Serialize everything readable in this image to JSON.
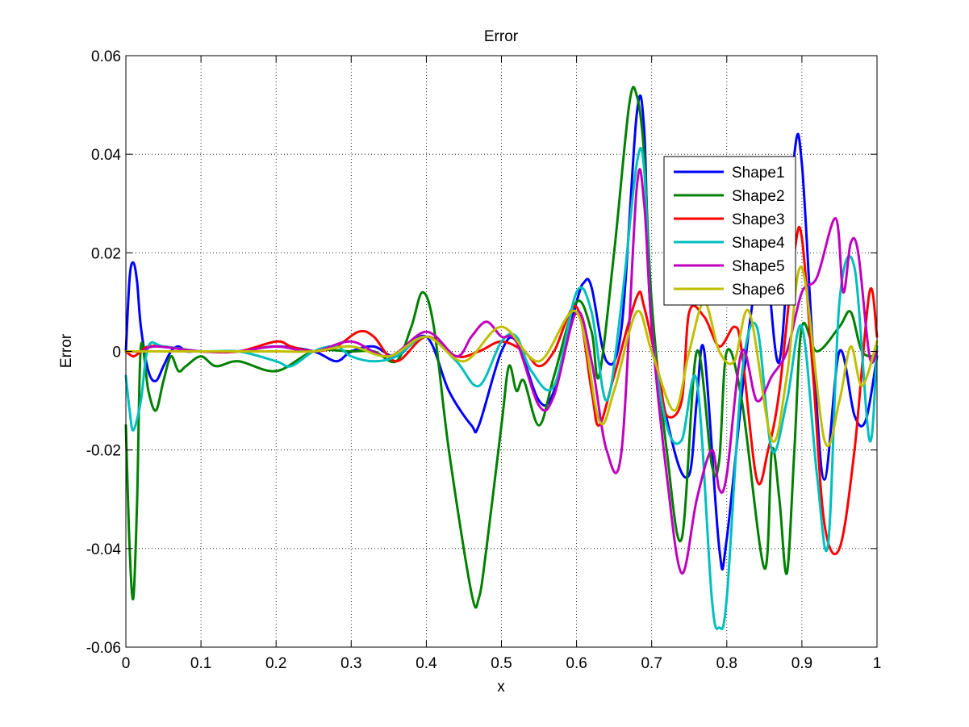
{
  "chart_data": {
    "type": "line",
    "title": "Error",
    "xlabel": "x",
    "ylabel": "Error",
    "xlim": [
      0,
      1
    ],
    "ylim": [
      -0.06,
      0.06
    ],
    "xticks": [
      0,
      0.1,
      0.2,
      0.3,
      0.4,
      0.5,
      0.6,
      0.7,
      0.8,
      0.9,
      1
    ],
    "xtick_labels": [
      "0",
      "0.1",
      "0.2",
      "0.3",
      "0.4",
      "0.5",
      "0.6",
      "0.7",
      "0.8",
      "0.9",
      "1"
    ],
    "yticks": [
      -0.06,
      -0.04,
      -0.02,
      0,
      0.02,
      0.04,
      0.06
    ],
    "ytick_labels": [
      "-0.06",
      "-0.04",
      "-0.02",
      "0",
      "0.02",
      "0.04",
      "0.06"
    ],
    "grid": true,
    "legend_position": "upper-right",
    "series": [
      {
        "name": "Shape1",
        "color": "#0000ff",
        "x": [
          0,
          0.005,
          0.01,
          0.015,
          0.02,
          0.03,
          0.04,
          0.05,
          0.06,
          0.07,
          0.08,
          0.09,
          0.1,
          0.12,
          0.15,
          0.2,
          0.25,
          0.28,
          0.3,
          0.33,
          0.36,
          0.4,
          0.43,
          0.46,
          0.47,
          0.5,
          0.52,
          0.55,
          0.57,
          0.6,
          0.61,
          0.62,
          0.64,
          0.66,
          0.68,
          0.69,
          0.7,
          0.73,
          0.75,
          0.76,
          0.77,
          0.79,
          0.8,
          0.83,
          0.85,
          0.87,
          0.89,
          0.9,
          0.915,
          0.93,
          0.95,
          0.97,
          0.985,
          1
        ],
        "y": [
          0,
          0.015,
          0.018,
          0.014,
          0.005,
          -0.004,
          -0.006,
          -0.003,
          0.0,
          0.001,
          0.0,
          0.0,
          0.0,
          0.0,
          0.0,
          0.001,
          0.0,
          -0.002,
          0.0,
          0.001,
          -0.001,
          0.003,
          -0.008,
          -0.015,
          -0.015,
          0.0,
          0.002,
          -0.01,
          -0.008,
          0.01,
          0.014,
          0.013,
          -0.002,
          0.005,
          0.048,
          0.045,
          0.005,
          -0.02,
          -0.025,
          -0.01,
          0.0,
          -0.04,
          -0.038,
          0.005,
          0.02,
          -0.002,
          0.04,
          0.038,
          0.0,
          -0.026,
          0.0,
          -0.013,
          -0.014,
          -0.001
        ]
      },
      {
        "name": "Shape2",
        "color": "#008000",
        "x": [
          0,
          0.005,
          0.01,
          0.015,
          0.02,
          0.03,
          0.04,
          0.05,
          0.06,
          0.07,
          0.08,
          0.1,
          0.12,
          0.15,
          0.2,
          0.25,
          0.3,
          0.33,
          0.36,
          0.38,
          0.395,
          0.41,
          0.43,
          0.46,
          0.47,
          0.48,
          0.5,
          0.51,
          0.52,
          0.53,
          0.55,
          0.57,
          0.6,
          0.62,
          0.63,
          0.65,
          0.67,
          0.68,
          0.69,
          0.7,
          0.72,
          0.74,
          0.76,
          0.78,
          0.79,
          0.8,
          0.82,
          0.85,
          0.86,
          0.87,
          0.88,
          0.89,
          0.9,
          0.92,
          0.95,
          0.965,
          0.98,
          1
        ],
        "y": [
          -0.015,
          -0.04,
          -0.05,
          -0.03,
          0.001,
          -0.008,
          -0.012,
          -0.006,
          -0.001,
          -0.004,
          -0.003,
          -0.001,
          -0.003,
          -0.002,
          -0.004,
          0.0,
          0.0,
          0.0,
          -0.002,
          0.005,
          0.012,
          0.005,
          -0.02,
          -0.049,
          -0.05,
          -0.04,
          -0.015,
          -0.003,
          -0.008,
          -0.006,
          -0.015,
          -0.005,
          0.01,
          0.004,
          -0.005,
          0.02,
          0.05,
          0.052,
          0.04,
          0.01,
          -0.02,
          -0.038,
          0.0,
          -0.023,
          -0.022,
          0.0,
          -0.01,
          -0.044,
          -0.02,
          -0.03,
          -0.045,
          -0.02,
          0.005,
          0.0,
          0.005,
          0.008,
          0.0,
          -0.001
        ]
      },
      {
        "name": "Shape3",
        "color": "#ff0000",
        "x": [
          0,
          0.01,
          0.02,
          0.03,
          0.05,
          0.1,
          0.15,
          0.2,
          0.22,
          0.25,
          0.28,
          0.31,
          0.33,
          0.36,
          0.4,
          0.44,
          0.47,
          0.5,
          0.53,
          0.55,
          0.57,
          0.6,
          0.62,
          0.63,
          0.65,
          0.68,
          0.69,
          0.71,
          0.72,
          0.74,
          0.75,
          0.77,
          0.79,
          0.81,
          0.82,
          0.84,
          0.855,
          0.87,
          0.89,
          0.9,
          0.915,
          0.93,
          0.95,
          0.97,
          0.99,
          1
        ],
        "y": [
          0,
          -0.001,
          0.0,
          0.001,
          0.001,
          0.0,
          0.0,
          0.002,
          0.001,
          0.0,
          0.001,
          0.004,
          0.003,
          -0.002,
          0.003,
          -0.001,
          0.0,
          0.002,
          0.0,
          -0.003,
          0.0,
          0.009,
          -0.008,
          -0.015,
          -0.005,
          0.011,
          0.009,
          -0.005,
          -0.013,
          -0.01,
          0.008,
          0.007,
          0.001,
          0.005,
          0.0,
          -0.026,
          -0.02,
          -0.008,
          0.02,
          0.023,
          -0.005,
          -0.035,
          -0.04,
          -0.02,
          0.012,
          0.003
        ]
      },
      {
        "name": "Shape4",
        "color": "#00bfbf",
        "x": [
          0,
          0.005,
          0.01,
          0.02,
          0.03,
          0.05,
          0.1,
          0.15,
          0.2,
          0.22,
          0.25,
          0.28,
          0.3,
          0.33,
          0.36,
          0.4,
          0.44,
          0.47,
          0.5,
          0.52,
          0.54,
          0.57,
          0.6,
          0.62,
          0.64,
          0.66,
          0.68,
          0.69,
          0.7,
          0.72,
          0.74,
          0.76,
          0.78,
          0.79,
          0.8,
          0.82,
          0.84,
          0.86,
          0.88,
          0.9,
          0.92,
          0.935,
          0.95,
          0.97,
          0.99,
          1
        ],
        "y": [
          -0.005,
          -0.012,
          -0.016,
          -0.01,
          0.001,
          0.001,
          0.0,
          0.0,
          -0.002,
          -0.003,
          0.0,
          0.001,
          -0.001,
          -0.002,
          -0.001,
          0.003,
          -0.002,
          -0.007,
          0.002,
          0.003,
          -0.004,
          -0.007,
          0.012,
          0.008,
          -0.01,
          0.01,
          0.038,
          0.037,
          0.005,
          -0.015,
          -0.018,
          -0.006,
          -0.05,
          -0.056,
          -0.05,
          -0.005,
          0.005,
          -0.02,
          -0.01,
          0.005,
          -0.025,
          -0.039,
          0.01,
          0.017,
          -0.018,
          0.001
        ]
      },
      {
        "name": "Shape5",
        "color": "#bf00bf",
        "x": [
          0,
          0.02,
          0.04,
          0.1,
          0.15,
          0.2,
          0.25,
          0.3,
          0.35,
          0.4,
          0.44,
          0.46,
          0.48,
          0.5,
          0.52,
          0.55,
          0.57,
          0.6,
          0.62,
          0.64,
          0.66,
          0.68,
          0.69,
          0.7,
          0.72,
          0.74,
          0.76,
          0.78,
          0.79,
          0.8,
          0.82,
          0.84,
          0.86,
          0.88,
          0.9,
          0.92,
          0.945,
          0.955,
          0.965,
          0.975,
          0.99,
          1
        ],
        "y": [
          0,
          0.0,
          0.001,
          0.0,
          0.0,
          0.001,
          0.0,
          0.002,
          -0.001,
          0.004,
          -0.001,
          0.003,
          0.006,
          0.003,
          0.002,
          -0.011,
          -0.009,
          0.008,
          -0.002,
          -0.02,
          -0.02,
          0.033,
          0.03,
          0.005,
          -0.025,
          -0.045,
          -0.03,
          -0.02,
          -0.028,
          -0.025,
          0.0,
          -0.01,
          -0.005,
          0.0,
          0.012,
          0.015,
          0.027,
          0.012,
          0.022,
          0.02,
          -0.001,
          0.0
        ]
      },
      {
        "name": "Shape6",
        "color": "#bfbf00",
        "x": [
          0,
          0.05,
          0.1,
          0.15,
          0.2,
          0.25,
          0.3,
          0.35,
          0.4,
          0.45,
          0.5,
          0.55,
          0.6,
          0.63,
          0.65,
          0.68,
          0.7,
          0.73,
          0.75,
          0.77,
          0.79,
          0.81,
          0.83,
          0.86,
          0.88,
          0.9,
          0.93,
          0.95,
          0.965,
          0.98,
          1
        ],
        "y": [
          0,
          0.0,
          0.0,
          0.0,
          0.0,
          0.0,
          0.001,
          -0.001,
          0.003,
          -0.002,
          0.005,
          -0.002,
          0.008,
          -0.014,
          -0.008,
          0.008,
          0.0,
          -0.012,
          0.0,
          0.01,
          0.0,
          -0.002,
          0.008,
          -0.018,
          -0.005,
          0.017,
          -0.018,
          -0.01,
          0.001,
          -0.007,
          0.002
        ]
      }
    ]
  }
}
